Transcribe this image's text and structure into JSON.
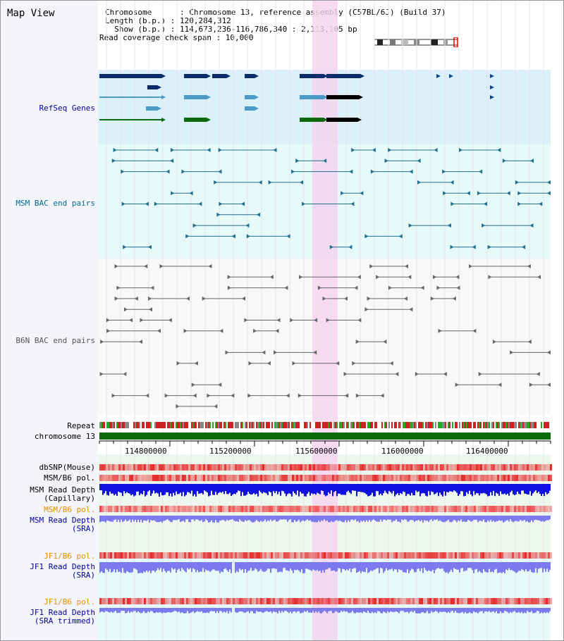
{
  "title": "Map View",
  "header": {
    "chromosome_line": "Chromosome      : Chromosome 13, reference assembly (C57BL/6J) (Build 37)",
    "length_line": "Length (b.p.) : 120,284,312",
    "show_line": "  Show (b.p.) : 114,673,236-116,786,340 : 2,113,105 bp",
    "span_line": "Read coverage check span : 10,000"
  },
  "tracks": {
    "refseq": "RefSeq Genes",
    "msm_bac": "MSM BAC end pairs",
    "b6n_bac": "B6N BAC end pairs",
    "repeat": "Repeat",
    "chromosome": "chromosome 13",
    "dbsnp": "dbSNP(Mouse)",
    "msm_b6_pol": "MSM/B6 pol.",
    "msm_depth_cap_1": "MSM Read Depth",
    "msm_depth_cap_2": "(Capillary)",
    "msm_b6_pol_sra": "MSM/B6 pol.",
    "msm_depth_sra_1": "MSM Read Depth",
    "msm_depth_sra_2": "(SRA)",
    "jf1_b6_pol": "JF1/B6 pol.",
    "jf1_depth_1": "JF1 Read Depth",
    "jf1_depth_2": "(SRA)",
    "jf1_b6_pol_2": "JF1/B6 pol.",
    "jf1_depth_trim_1": "JF1 Read Depth",
    "jf1_depth_trim_2": "(SRA trimmed)"
  },
  "axis_ticks": [
    "114800000",
    "115200000",
    "115600000",
    "116000000",
    "116400000"
  ],
  "colors": {
    "refseq_bg": "#dcf0f9",
    "msm_bg": "#e6fafa",
    "b6n_bg": "#f8f8f8",
    "highlight": "#f6d2f0",
    "gene_dark": "#0a2c6a",
    "gene_blue": "#4a9ac8",
    "gene_green": "#0b6a0b",
    "msm_line": "#1e6e8e",
    "b6n_line": "#666666",
    "chrom_green": "#0a6a0a",
    "depth_blue": "#1010e0",
    "depth_light": "#7b7bef",
    "label_blue": "#0000a0",
    "label_orange": "#e09000",
    "label_teal": "#006a8e"
  }
}
